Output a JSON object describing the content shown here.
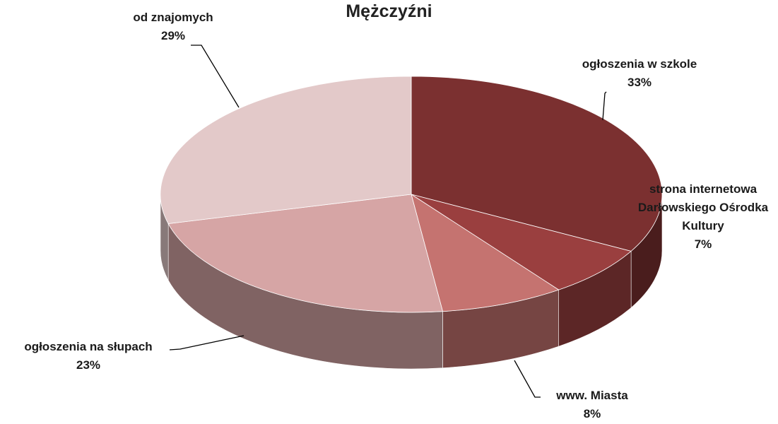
{
  "chart_data": {
    "type": "pie",
    "title": "Mężczyźni",
    "categories": [
      "ogłoszenia w szkole",
      "strona internetowa Darłowskiego Ośrodka Kultury",
      "www. Miasta",
      "ogłoszenia na słupach",
      "od znajomych"
    ],
    "values": [
      33,
      7,
      8,
      23,
      29
    ],
    "value_labels": [
      "33%",
      "7%",
      "8%",
      "23%",
      "29%"
    ],
    "colors": [
      "#7b3030",
      "#9a3f3f",
      "#c57370",
      "#d6a5a5",
      "#e3c9c9"
    ]
  }
}
